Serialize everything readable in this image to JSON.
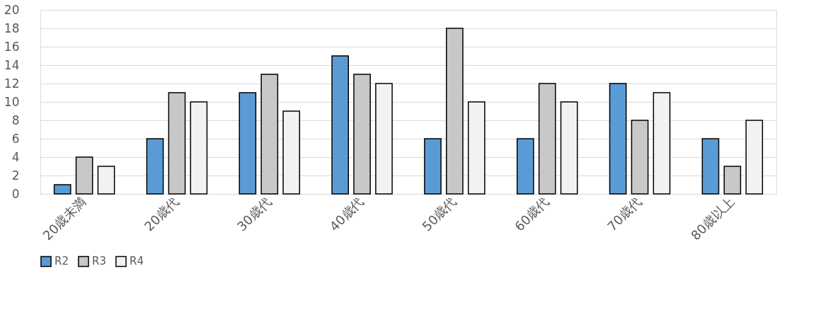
{
  "chart_data": {
    "type": "bar",
    "categories": [
      "20歳未満",
      "20歳代",
      "30歳代",
      "40歳代",
      "50歳代",
      "60歳代",
      "70歳代",
      "80歳以上"
    ],
    "series": [
      {
        "name": "R2",
        "color": "#5b9bd5",
        "values": [
          1,
          6,
          11,
          15,
          6,
          6,
          12,
          6
        ]
      },
      {
        "name": "R3",
        "color": "#c8c8c8",
        "values": [
          4,
          11,
          13,
          13,
          18,
          12,
          8,
          3
        ]
      },
      {
        "name": "R4",
        "color": "#f2f2f2",
        "values": [
          3,
          10,
          9,
          12,
          10,
          10,
          11,
          8
        ]
      }
    ],
    "ylim": [
      0,
      20
    ],
    "yticks": [
      0,
      2,
      4,
      6,
      8,
      10,
      12,
      14,
      16,
      18,
      20
    ],
    "grid": "y",
    "legend": "bottom"
  }
}
